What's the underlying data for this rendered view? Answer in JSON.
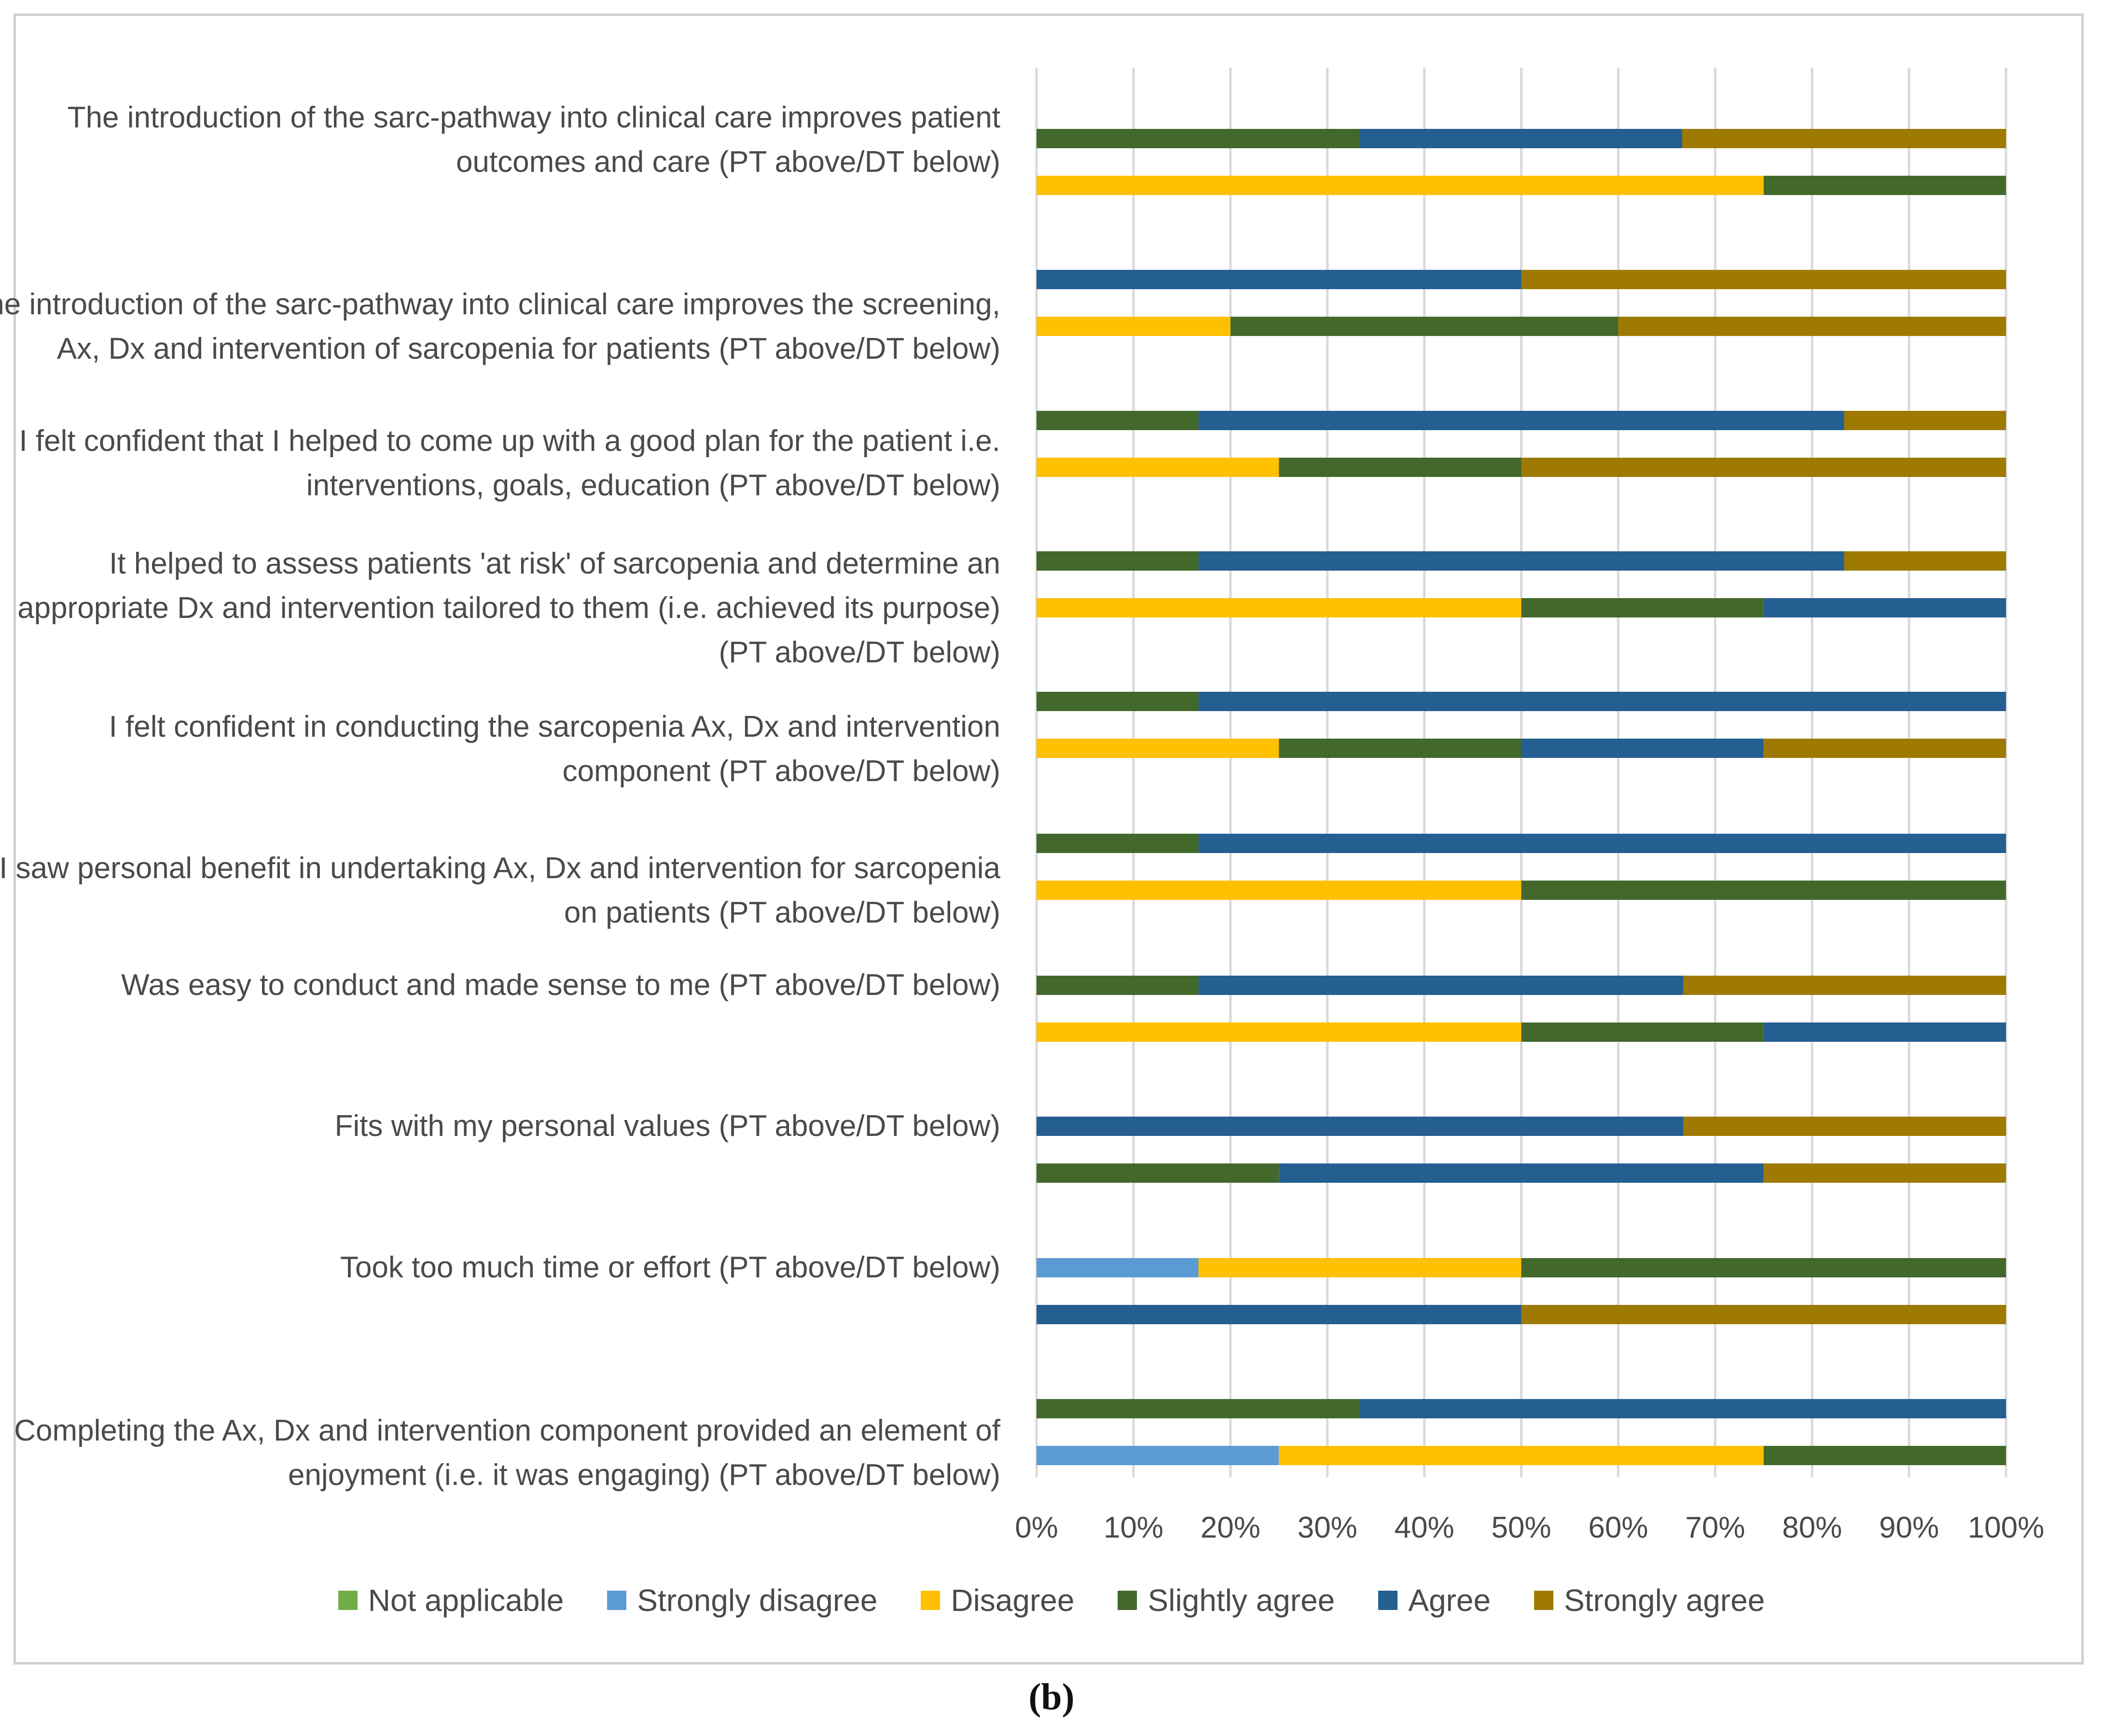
{
  "chart_data": {
    "type": "bar",
    "orientation": "horizontal",
    "stacked": "percent",
    "categories": [
      "The introduction of the sarc-pathway into clinical care improves patient outcomes and care (PT above/DT below)",
      "The introduction of the sarc-pathway into clinical care improves the screening, Ax, Dx and intervention of sarcopenia for patients (PT above/DT below)",
      "I felt confident that I helped to come up with a good plan for the patient i.e. interventions, goals, education (PT above/DT below)",
      "It helped to assess patients 'at risk' of sarcopenia and determine an appropriate Dx and intervention tailored to them (i.e. achieved its purpose) (PT above/DT below)",
      "I felt confident in conducting the sarcopenia Ax, Dx and intervention component (PT above/DT below)",
      "I saw personal benefit in undertaking Ax, Dx and intervention for sarcopenia on patients (PT above/DT below)",
      "Was easy to conduct and made sense to me (PT above/DT below)",
      "Fits with my personal values (PT above/DT below)",
      "Took too much time or effort (PT above/DT below)",
      "Completing the Ax, Dx and intervention component provided an element of enjoyment (i.e. it was engaging) (PT above/DT below)"
    ],
    "series_names": [
      "Not applicable",
      "Strongly disagree",
      "Disagree",
      "Slightly agree",
      "Agree",
      "Strongly agree"
    ],
    "colors": [
      "#70ad47",
      "#5b9bd5",
      "#ffc000",
      "#43682b",
      "#255e91",
      "#9e7a03"
    ],
    "bars": [
      {
        "PT": [
          0,
          0,
          0,
          33.3,
          33.3,
          33.4
        ],
        "DT": [
          0,
          0,
          75,
          25,
          0,
          0
        ]
      },
      {
        "PT": [
          0,
          0,
          0,
          0,
          50,
          50
        ],
        "DT": [
          0,
          0,
          20,
          40,
          0,
          40
        ]
      },
      {
        "PT": [
          0,
          0,
          0,
          16.7,
          66.6,
          16.7
        ],
        "DT": [
          0,
          0,
          25,
          25,
          0,
          50
        ]
      },
      {
        "PT": [
          0,
          0,
          0,
          16.7,
          66.6,
          16.7
        ],
        "DT": [
          0,
          0,
          50,
          25,
          25,
          0
        ]
      },
      {
        "PT": [
          0,
          0,
          0,
          16.7,
          83.3,
          0
        ],
        "DT": [
          0,
          0,
          25,
          25,
          25,
          25
        ]
      },
      {
        "PT": [
          0,
          0,
          0,
          16.7,
          83.3,
          0
        ],
        "DT": [
          0,
          0,
          50,
          50,
          0,
          0
        ]
      },
      {
        "PT": [
          0,
          0,
          0,
          16.7,
          50,
          33.3
        ],
        "DT": [
          0,
          0,
          50,
          25,
          25,
          0
        ]
      },
      {
        "PT": [
          0,
          0,
          0,
          0,
          66.7,
          33.3
        ],
        "DT": [
          0,
          0,
          0,
          25,
          50,
          25
        ]
      },
      {
        "PT": [
          0,
          16.7,
          33.3,
          50,
          0,
          0
        ],
        "DT": [
          0,
          0,
          0,
          0,
          50,
          50
        ]
      },
      {
        "PT": [
          0,
          0,
          0,
          33.3,
          66.7,
          0
        ],
        "DT": [
          0,
          25,
          50,
          25,
          0,
          0
        ]
      }
    ],
    "xlim": [
      0,
      100
    ],
    "xticks": [
      "0%",
      "10%",
      "20%",
      "30%",
      "40%",
      "50%",
      "60%",
      "70%",
      "80%",
      "90%",
      "100%"
    ],
    "grid": "vertical",
    "legend_position": "bottom",
    "caption": "(b)"
  }
}
